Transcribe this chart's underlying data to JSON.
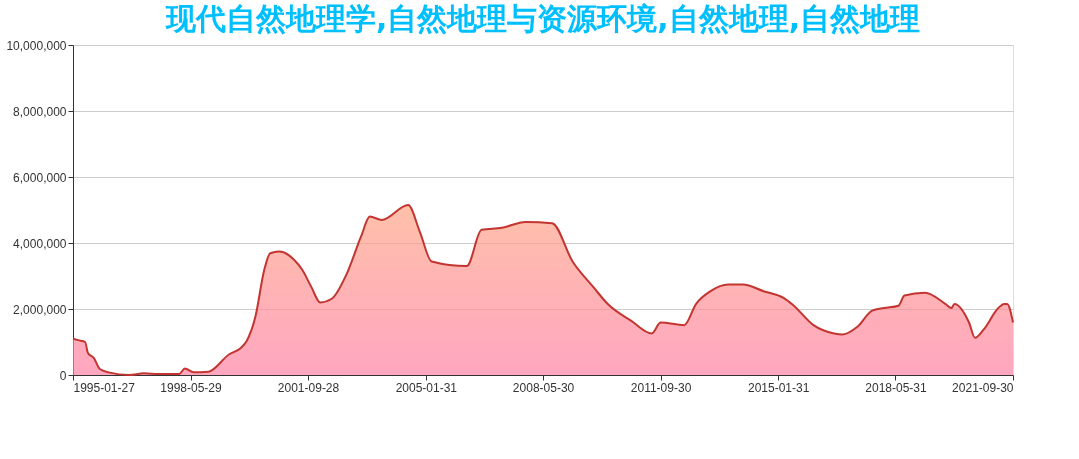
{
  "chart_data": {
    "type": "area",
    "title": "现代自然地理学,自然地理与资源环境,自然地理,自然地理",
    "x": [
      "1995-01-27",
      "1995-04",
      "1995-06",
      "1995-07",
      "1995-09",
      "1995-11",
      "1996-02",
      "1996-09",
      "1997-02",
      "1997-07",
      "1998-02",
      "1998-04",
      "1998-07",
      "1998-12",
      "1999-07",
      "1999-11",
      "2000-01",
      "2000-04",
      "2000-07",
      "2000-09",
      "2000-12",
      "2001-05",
      "2001-08",
      "2001-11",
      "2002-02",
      "2002-06",
      "2002-11",
      "2003-04",
      "2003-07",
      "2003-11",
      "2004-08",
      "2004-12",
      "2005-04",
      "2006-04",
      "2006-09",
      "2007-04",
      "2007-12",
      "2008-09",
      "2009-04",
      "2009-11",
      "2010-04",
      "2010-12",
      "2011-07",
      "2011-10",
      "2012-06",
      "2012-10",
      "2013-03",
      "2013-09",
      "2014-02",
      "2014-09",
      "2015-04",
      "2015-07",
      "2016-02",
      "2016-09",
      "2016-12",
      "2017-05",
      "2017-10",
      "2018-02",
      "2018-07",
      "2018-09",
      "2019-04",
      "2019-11",
      "2020-01",
      "2020-02",
      "2020-07",
      "2020-09",
      "2020-12",
      "2021-05",
      "2021-07",
      "2021-08",
      "2021-09-30"
    ],
    "series": [
      {
        "color": "#c23531",
        "values": [
          1100000,
          1050000,
          1000000,
          670000,
          510000,
          180000,
          80000,
          0,
          50000,
          30000,
          30000,
          200000,
          80000,
          100000,
          620000,
          820000,
          1030000,
          1770000,
          3180000,
          3690000,
          3740000,
          3510000,
          3180000,
          2670000,
          2200000,
          2310000,
          3050000,
          4200000,
          4800000,
          4700000,
          5150000,
          4330000,
          3440000,
          3300000,
          4400000,
          4460000,
          4640000,
          4600000,
          3440000,
          2670000,
          2150000,
          1640000,
          1260000,
          1590000,
          1510000,
          2150000,
          2540000,
          2740000,
          2740000,
          2540000,
          2330000,
          2130000,
          1510000,
          1260000,
          1230000,
          1460000,
          1950000,
          2030000,
          2100000,
          2410000,
          2490000,
          2150000,
          2030000,
          2150000,
          1590000,
          1130000,
          1380000,
          2030000,
          2150000,
          2150000,
          1590000
        ]
      }
    ],
    "xlim": [
      "1995-01-27",
      "2021-09-30"
    ],
    "xticks": [
      "1995-01-27",
      "1998-05-29",
      "2001-09-28",
      "2005-01-31",
      "2008-05-30",
      "2011-09-30",
      "2015-01-31",
      "2018-05-31",
      "2021-09-30"
    ],
    "ylim": [
      0,
      10000000
    ],
    "yticks": [
      0,
      {
        "value": 2000000,
        "label": "2,000,000"
      },
      {
        "value": 4000000,
        "label": "4,000,000"
      },
      {
        "value": 6000000,
        "label": "6,000,000"
      },
      {
        "value": 8000000,
        "label": "8,000,000"
      },
      {
        "value": 10000000,
        "label": "10,000,000"
      }
    ],
    "grid": "y"
  }
}
